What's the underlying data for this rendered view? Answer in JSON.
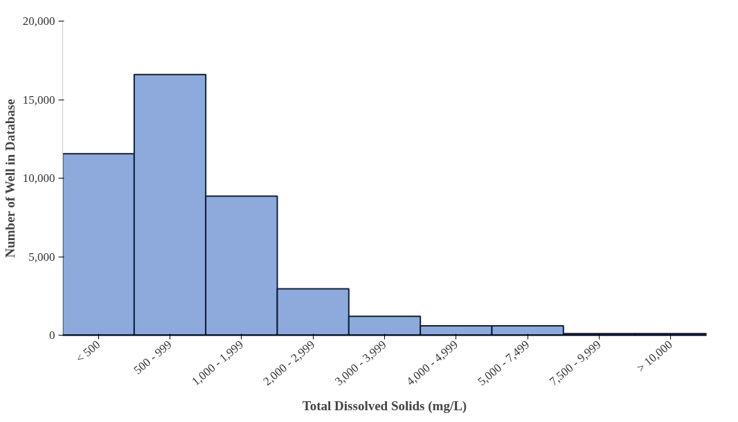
{
  "chart_data": {
    "type": "bar",
    "xlabel": "Total Dissolved Solids (mg/L)",
    "ylabel": "Number of Well in Database",
    "categories": [
      "< 500",
      "500 - 999",
      "1,000 - 1,999",
      "2,000 - 2,999",
      "3,000 - 3,999",
      "4,000 - 4,999",
      "5,000 - 7,499",
      "7,500 - 9,999",
      "> 10,000"
    ],
    "values": [
      11550,
      16600,
      8850,
      2950,
      1200,
      600,
      600,
      100,
      100
    ],
    "color": "#8eaadc",
    "ylim": [
      0,
      20000
    ],
    "yticks": [
      {
        "value": 0,
        "label": "0"
      },
      {
        "value": 5000,
        "label": "5,000"
      },
      {
        "value": 10000,
        "label": "10,000"
      },
      {
        "value": 15000,
        "label": "15,000"
      },
      {
        "value": 20000,
        "label": "20,000"
      }
    ],
    "grid": false
  }
}
